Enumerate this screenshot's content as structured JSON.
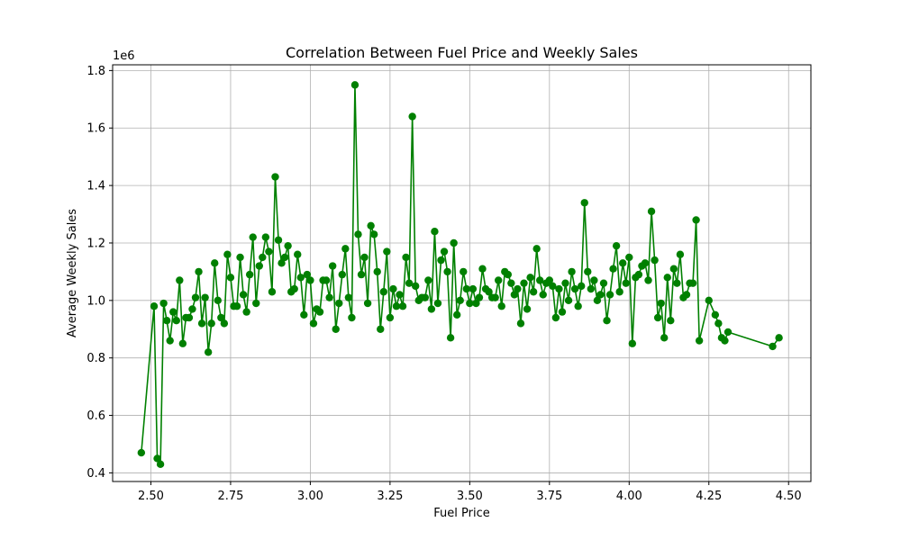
{
  "chart_data": {
    "type": "line",
    "title": "Correlation Between Fuel Price and Weekly Sales",
    "xlabel": "Fuel Price",
    "ylabel": "Average Weekly Sales",
    "y_multiplier_label": "1e6",
    "xlim": [
      2.38,
      4.57
    ],
    "ylim": [
      0.37,
      1.82
    ],
    "xticks": [
      2.5,
      2.75,
      3.0,
      3.25,
      3.5,
      3.75,
      4.0,
      4.25,
      4.5
    ],
    "xtick_labels": [
      "2.50",
      "2.75",
      "3.00",
      "3.25",
      "3.50",
      "3.75",
      "4.00",
      "4.25",
      "4.50"
    ],
    "yticks": [
      0.4,
      0.6,
      0.8,
      1.0,
      1.2,
      1.4,
      1.6,
      1.8
    ],
    "ytick_labels": [
      "0.4",
      "0.6",
      "0.8",
      "1.0",
      "1.2",
      "1.4",
      "1.6",
      "1.8"
    ],
    "grid": true,
    "line_color": "#008000",
    "series": [
      {
        "marker": "circle",
        "x": [
          2.47,
          2.51,
          2.52,
          2.53,
          2.54,
          2.55,
          2.56,
          2.57,
          2.58,
          2.59,
          2.6,
          2.61,
          2.62,
          2.63,
          2.64,
          2.65,
          2.66,
          2.67,
          2.68,
          2.69,
          2.7,
          2.71,
          2.72,
          2.73,
          2.74,
          2.75,
          2.76,
          2.77,
          2.78,
          2.79,
          2.8,
          2.81,
          2.82,
          2.83,
          2.84,
          2.85,
          2.86,
          2.87,
          2.88,
          2.89,
          2.9,
          2.91,
          2.92,
          2.93,
          2.94,
          2.95,
          2.96,
          2.97,
          2.98,
          2.99,
          3.0,
          3.01,
          3.02,
          3.03,
          3.04,
          3.05,
          3.06,
          3.07,
          3.08,
          3.09,
          3.1,
          3.11,
          3.12,
          3.13,
          3.14,
          3.15,
          3.16,
          3.17,
          3.18,
          3.19,
          3.2,
          3.21,
          3.22,
          3.23,
          3.24,
          3.25,
          3.26,
          3.27,
          3.28,
          3.29,
          3.3,
          3.31,
          3.32,
          3.33,
          3.34,
          3.35,
          3.36,
          3.37,
          3.38,
          3.39,
          3.4,
          3.41,
          3.42,
          3.43,
          3.44,
          3.45,
          3.46,
          3.47,
          3.48,
          3.49,
          3.5,
          3.51,
          3.52,
          3.53,
          3.54,
          3.55,
          3.56,
          3.57,
          3.58,
          3.59,
          3.6,
          3.61,
          3.62,
          3.63,
          3.64,
          3.65,
          3.66,
          3.67,
          3.68,
          3.69,
          3.7,
          3.71,
          3.72,
          3.73,
          3.74,
          3.75,
          3.76,
          3.77,
          3.78,
          3.79,
          3.8,
          3.81,
          3.82,
          3.83,
          3.84,
          3.85,
          3.86,
          3.87,
          3.88,
          3.89,
          3.9,
          3.91,
          3.92,
          3.93,
          3.94,
          3.95,
          3.96,
          3.97,
          3.98,
          3.99,
          4.0,
          4.01,
          4.02,
          4.03,
          4.04,
          4.05,
          4.06,
          4.07,
          4.08,
          4.09,
          4.1,
          4.11,
          4.12,
          4.13,
          4.14,
          4.15,
          4.16,
          4.17,
          4.18,
          4.19,
          4.2,
          4.21,
          4.22,
          4.25,
          4.27,
          4.28,
          4.29,
          4.3,
          4.31,
          4.45,
          4.47
        ],
        "y": [
          0.47,
          0.98,
          0.45,
          0.43,
          0.99,
          0.93,
          0.86,
          0.96,
          0.93,
          1.07,
          0.85,
          0.94,
          0.94,
          0.97,
          1.01,
          1.1,
          0.92,
          1.01,
          0.82,
          0.92,
          1.13,
          1.0,
          0.94,
          0.92,
          1.16,
          1.08,
          0.98,
          0.98,
          1.15,
          1.02,
          0.96,
          1.09,
          1.22,
          0.99,
          1.12,
          1.15,
          1.22,
          1.17,
          1.03,
          1.43,
          1.21,
          1.13,
          1.15,
          1.19,
          1.03,
          1.04,
          1.16,
          1.08,
          0.95,
          1.09,
          1.07,
          0.92,
          0.97,
          0.96,
          1.07,
          1.07,
          1.01,
          1.12,
          0.9,
          0.99,
          1.09,
          1.18,
          1.01,
          0.94,
          1.75,
          1.23,
          1.09,
          1.15,
          0.99,
          1.26,
          1.23,
          1.1,
          0.9,
          1.03,
          1.17,
          0.94,
          1.04,
          0.98,
          1.02,
          0.98,
          1.15,
          1.06,
          1.64,
          1.05,
          1.0,
          1.01,
          1.01,
          1.07,
          0.97,
          1.24,
          0.99,
          1.14,
          1.17,
          1.1,
          0.87,
          1.2,
          0.95,
          1.0,
          1.1,
          1.04,
          0.99,
          1.04,
          0.99,
          1.01,
          1.11,
          1.04,
          1.03,
          1.01,
          1.01,
          1.07,
          0.98,
          1.1,
          1.09,
          1.06,
          1.02,
          1.04,
          0.92,
          1.06,
          0.97,
          1.08,
          1.03,
          1.18,
          1.07,
          1.02,
          1.06,
          1.07,
          1.05,
          0.94,
          1.04,
          0.96,
          1.06,
          1.0,
          1.1,
          1.04,
          0.98,
          1.05,
          1.34,
          1.1,
          1.04,
          1.07,
          1.0,
          1.02,
          1.06,
          0.93,
          1.02,
          1.11,
          1.19,
          1.03,
          1.13,
          1.06,
          1.15,
          0.85,
          1.08,
          1.09,
          1.12,
          1.13,
          1.07,
          1.31,
          1.14,
          0.94,
          0.99,
          0.87,
          1.08,
          0.93,
          1.11,
          1.06,
          1.16,
          1.01,
          1.02,
          1.06,
          1.06,
          1.28,
          0.86,
          1.0,
          0.95,
          0.92,
          0.87,
          0.86,
          0.89,
          0.84,
          0.87
        ]
      }
    ]
  }
}
